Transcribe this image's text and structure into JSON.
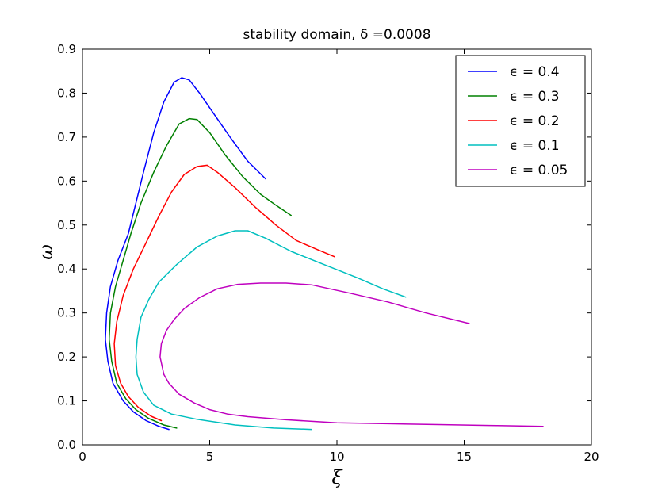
{
  "chart_data": {
    "type": "line",
    "title": "stability domain, δ =0.0008",
    "xlabel": "ξ",
    "ylabel": "ω",
    "xlim": [
      0,
      20
    ],
    "ylim": [
      0,
      0.9
    ],
    "xticks": [
      0,
      5,
      10,
      15,
      20
    ],
    "xtick_labels": [
      "0",
      "5",
      "10",
      "15",
      "20"
    ],
    "yticks": [
      0.0,
      0.1,
      0.2,
      0.3,
      0.4,
      0.5,
      0.6,
      0.7,
      0.8,
      0.9
    ],
    "ytick_labels": [
      "0.0",
      "0.1",
      "0.2",
      "0.3",
      "0.4",
      "0.5",
      "0.6",
      "0.7",
      "0.8",
      "0.9"
    ],
    "grid": false,
    "legend_position": "top-right",
    "series": [
      {
        "name": "ϵ = 0.4",
        "color": "#0000ff",
        "points": [
          [
            3.4,
            0.035
          ],
          [
            3.0,
            0.042
          ],
          [
            2.5,
            0.055
          ],
          [
            2.0,
            0.075
          ],
          [
            1.6,
            0.1
          ],
          [
            1.2,
            0.14
          ],
          [
            1.0,
            0.19
          ],
          [
            0.9,
            0.24
          ],
          [
            0.95,
            0.3
          ],
          [
            1.1,
            0.36
          ],
          [
            1.4,
            0.42
          ],
          [
            1.8,
            0.48
          ],
          [
            2.1,
            0.55
          ],
          [
            2.4,
            0.62
          ],
          [
            2.8,
            0.71
          ],
          [
            3.2,
            0.78
          ],
          [
            3.6,
            0.825
          ],
          [
            3.9,
            0.835
          ],
          [
            4.2,
            0.83
          ],
          [
            4.6,
            0.8
          ],
          [
            5.2,
            0.75
          ],
          [
            5.8,
            0.7
          ],
          [
            6.5,
            0.645
          ],
          [
            7.2,
            0.605
          ]
        ]
      },
      {
        "name": "ϵ = 0.3",
        "color": "#008000",
        "points": [
          [
            3.7,
            0.038
          ],
          [
            3.2,
            0.045
          ],
          [
            2.6,
            0.06
          ],
          [
            2.1,
            0.08
          ],
          [
            1.7,
            0.105
          ],
          [
            1.35,
            0.14
          ],
          [
            1.15,
            0.19
          ],
          [
            1.05,
            0.24
          ],
          [
            1.1,
            0.3
          ],
          [
            1.3,
            0.36
          ],
          [
            1.6,
            0.42
          ],
          [
            1.9,
            0.48
          ],
          [
            2.3,
            0.55
          ],
          [
            2.8,
            0.62
          ],
          [
            3.3,
            0.68
          ],
          [
            3.8,
            0.73
          ],
          [
            4.2,
            0.742
          ],
          [
            4.5,
            0.74
          ],
          [
            5.0,
            0.71
          ],
          [
            5.6,
            0.66
          ],
          [
            6.3,
            0.61
          ],
          [
            7.0,
            0.57
          ],
          [
            7.6,
            0.545
          ],
          [
            8.2,
            0.522
          ]
        ]
      },
      {
        "name": "ϵ = 0.2",
        "color": "#ff0000",
        "points": [
          [
            3.1,
            0.055
          ],
          [
            2.7,
            0.065
          ],
          [
            2.2,
            0.085
          ],
          [
            1.8,
            0.11
          ],
          [
            1.5,
            0.14
          ],
          [
            1.3,
            0.18
          ],
          [
            1.25,
            0.23
          ],
          [
            1.35,
            0.28
          ],
          [
            1.6,
            0.34
          ],
          [
            2.0,
            0.4
          ],
          [
            2.5,
            0.46
          ],
          [
            3.0,
            0.52
          ],
          [
            3.5,
            0.575
          ],
          [
            4.0,
            0.615
          ],
          [
            4.5,
            0.633
          ],
          [
            4.9,
            0.636
          ],
          [
            5.3,
            0.62
          ],
          [
            6.0,
            0.585
          ],
          [
            6.8,
            0.54
          ],
          [
            7.6,
            0.5
          ],
          [
            8.4,
            0.465
          ],
          [
            9.2,
            0.445
          ],
          [
            9.9,
            0.428
          ]
        ]
      },
      {
        "name": "ϵ = 0.1",
        "color": "#00bfbf",
        "points": [
          [
            9.0,
            0.035
          ],
          [
            7.5,
            0.038
          ],
          [
            6.0,
            0.045
          ],
          [
            4.5,
            0.058
          ],
          [
            3.5,
            0.07
          ],
          [
            2.8,
            0.09
          ],
          [
            2.4,
            0.12
          ],
          [
            2.15,
            0.16
          ],
          [
            2.1,
            0.2
          ],
          [
            2.15,
            0.24
          ],
          [
            2.3,
            0.29
          ],
          [
            2.6,
            0.33
          ],
          [
            3.0,
            0.37
          ],
          [
            3.7,
            0.41
          ],
          [
            4.5,
            0.45
          ],
          [
            5.3,
            0.475
          ],
          [
            6.0,
            0.487
          ],
          [
            6.5,
            0.487
          ],
          [
            7.2,
            0.47
          ],
          [
            8.2,
            0.44
          ],
          [
            9.5,
            0.41
          ],
          [
            10.8,
            0.38
          ],
          [
            11.8,
            0.355
          ],
          [
            12.7,
            0.336
          ]
        ]
      },
      {
        "name": "ϵ = 0.05",
        "color": "#bf00bf",
        "points": [
          [
            18.1,
            0.042
          ],
          [
            16.0,
            0.044
          ],
          [
            14.0,
            0.046
          ],
          [
            12.0,
            0.048
          ],
          [
            10.0,
            0.05
          ],
          [
            8.0,
            0.057
          ],
          [
            6.5,
            0.064
          ],
          [
            5.7,
            0.07
          ],
          [
            5.0,
            0.08
          ],
          [
            4.4,
            0.095
          ],
          [
            3.8,
            0.115
          ],
          [
            3.4,
            0.14
          ],
          [
            3.2,
            0.16
          ],
          [
            3.05,
            0.2
          ],
          [
            3.1,
            0.23
          ],
          [
            3.3,
            0.26
          ],
          [
            3.6,
            0.285
          ],
          [
            4.0,
            0.31
          ],
          [
            4.6,
            0.335
          ],
          [
            5.3,
            0.355
          ],
          [
            6.1,
            0.365
          ],
          [
            7.0,
            0.368
          ],
          [
            8.0,
            0.368
          ],
          [
            9.0,
            0.364
          ],
          [
            10.5,
            0.345
          ],
          [
            12.0,
            0.325
          ],
          [
            13.5,
            0.3
          ],
          [
            15.2,
            0.276
          ]
        ]
      }
    ]
  }
}
